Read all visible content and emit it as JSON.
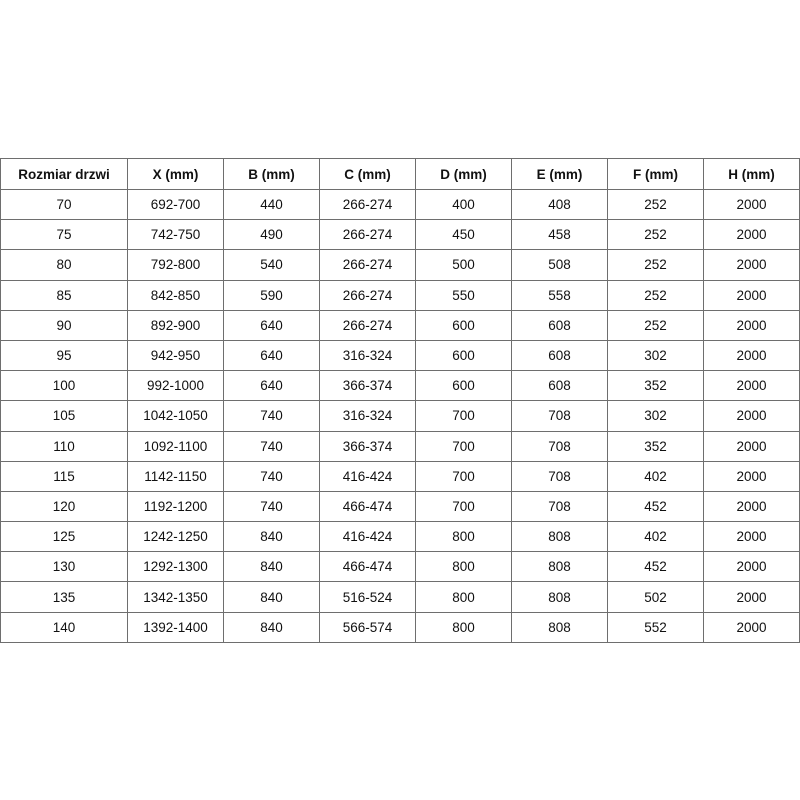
{
  "table": {
    "headers": [
      "Rozmiar drzwi",
      "X (mm)",
      "B (mm)",
      "C (mm)",
      "D (mm)",
      "E (mm)",
      "F (mm)",
      "H (mm)"
    ],
    "rows": [
      [
        "70",
        "692-700",
        "440",
        "266-274",
        "400",
        "408",
        "252",
        "2000"
      ],
      [
        "75",
        "742-750",
        "490",
        "266-274",
        "450",
        "458",
        "252",
        "2000"
      ],
      [
        "80",
        "792-800",
        "540",
        "266-274",
        "500",
        "508",
        "252",
        "2000"
      ],
      [
        "85",
        "842-850",
        "590",
        "266-274",
        "550",
        "558",
        "252",
        "2000"
      ],
      [
        "90",
        "892-900",
        "640",
        "266-274",
        "600",
        "608",
        "252",
        "2000"
      ],
      [
        "95",
        "942-950",
        "640",
        "316-324",
        "600",
        "608",
        "302",
        "2000"
      ],
      [
        "100",
        "992-1000",
        "640",
        "366-374",
        "600",
        "608",
        "352",
        "2000"
      ],
      [
        "105",
        "1042-1050",
        "740",
        "316-324",
        "700",
        "708",
        "302",
        "2000"
      ],
      [
        "110",
        "1092-1100",
        "740",
        "366-374",
        "700",
        "708",
        "352",
        "2000"
      ],
      [
        "115",
        "1142-1150",
        "740",
        "416-424",
        "700",
        "708",
        "402",
        "2000"
      ],
      [
        "120",
        "1192-1200",
        "740",
        "466-474",
        "700",
        "708",
        "452",
        "2000"
      ],
      [
        "125",
        "1242-1250",
        "840",
        "416-424",
        "800",
        "808",
        "402",
        "2000"
      ],
      [
        "130",
        "1292-1300",
        "840",
        "466-474",
        "800",
        "808",
        "452",
        "2000"
      ],
      [
        "135",
        "1342-1350",
        "840",
        "516-524",
        "800",
        "808",
        "502",
        "2000"
      ],
      [
        "140",
        "1392-1400",
        "840",
        "566-574",
        "800",
        "808",
        "552",
        "2000"
      ]
    ]
  }
}
